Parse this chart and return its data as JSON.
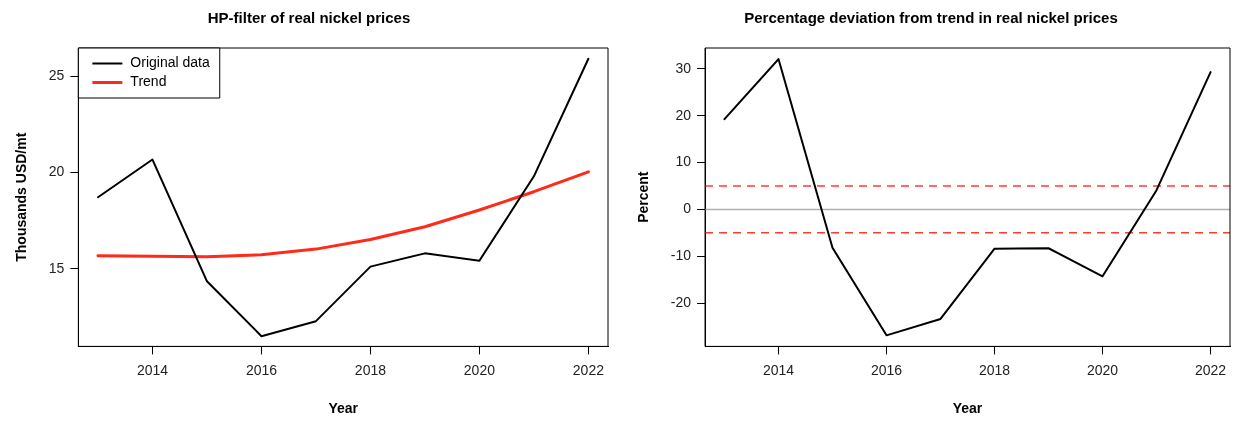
{
  "chart_data": [
    {
      "type": "line",
      "title": "HP-filter of real nickel prices",
      "xlabel": "Year",
      "ylabel": "Thousands USD/mt",
      "x": [
        2013,
        2014,
        2015,
        2016,
        2017,
        2018,
        2019,
        2020,
        2021,
        2022
      ],
      "xlim": [
        2012.64,
        2022.36
      ],
      "xticks": [
        2014,
        2016,
        2018,
        2020,
        2022
      ],
      "ylim": [
        10.98,
        26.47
      ],
      "yticks": [
        15,
        20,
        25
      ],
      "grid": false,
      "legend": "top left",
      "marker": "none",
      "line_style": "solid",
      "series": [
        {
          "name": "Original data",
          "color": "#000000",
          "values": [
            18.72,
            20.68,
            14.36,
            11.51,
            12.29,
            15.12,
            15.81,
            15.43,
            19.81,
            25.91
          ]
        },
        {
          "name": "Trend",
          "color": "#ff2a1a",
          "values": [
            15.68,
            15.66,
            15.64,
            15.74,
            16.03,
            16.53,
            17.19,
            18.06,
            19.01,
            20.04
          ]
        }
      ]
    },
    {
      "type": "line",
      "title": "Percentage deviation from trend in real nickel prices",
      "xlabel": "Year",
      "ylabel": "Percent",
      "x": [
        2013,
        2014,
        2015,
        2016,
        2017,
        2018,
        2019,
        2020,
        2021,
        2022
      ],
      "xlim": [
        2012.64,
        2022.36
      ],
      "xticks": [
        2014,
        2016,
        2018,
        2020,
        2022
      ],
      "ylim": [
        -29.26,
        34.46
      ],
      "yticks": [
        -20,
        -10,
        0,
        10,
        20,
        30
      ],
      "grid": false,
      "legend": false,
      "marker": "none",
      "line_style": "solid",
      "series": [
        {
          "color": "#000000",
          "values": [
            19.27,
            32.1,
            -8.2,
            -26.9,
            -23.4,
            -8.4,
            -8.3,
            -14.3,
            4.1,
            29.3
          ]
        }
      ],
      "ref_lines": [
        {
          "axis": "y",
          "value": 0,
          "color": "#b0b0b0",
          "line_style": "solid"
        },
        {
          "axis": "y",
          "value": 5,
          "color": "#ff3b30",
          "line_style": "dashed"
        },
        {
          "axis": "y",
          "value": -5,
          "color": "#ff3b30",
          "line_style": "dashed"
        }
      ]
    }
  ]
}
